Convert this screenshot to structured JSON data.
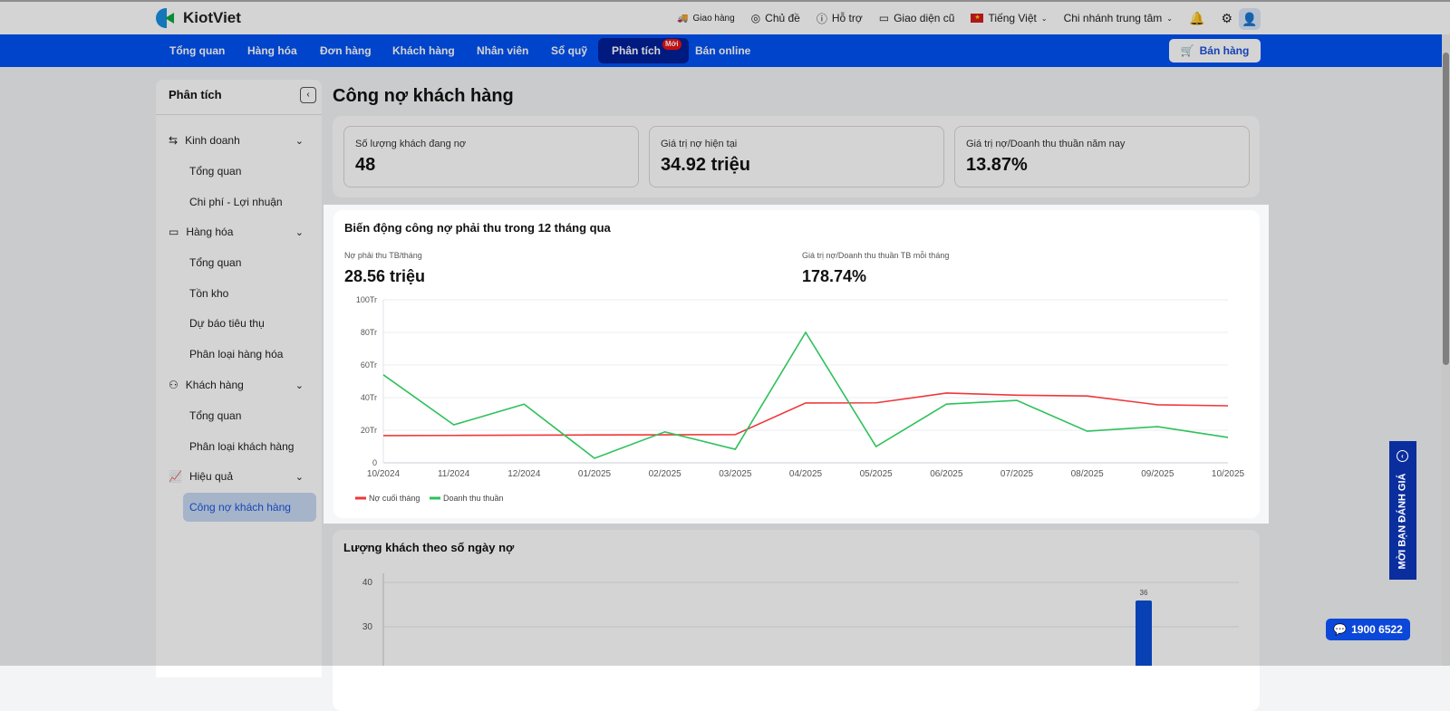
{
  "header": {
    "brand": "KiotViet",
    "links": [
      {
        "label": "Giao hàng",
        "icon": "truck-icon"
      },
      {
        "label": "Chủ đề",
        "icon": "palette-icon"
      },
      {
        "label": "Hỗ trợ",
        "icon": "chat-icon"
      },
      {
        "label": "Giao diện cũ",
        "icon": "monitor-icon"
      }
    ],
    "language": "Tiếng Việt",
    "branch": "Chi nhánh trung tâm"
  },
  "nav": {
    "tabs": [
      "Tổng quan",
      "Hàng hóa",
      "Đơn hàng",
      "Khách hàng",
      "Nhân viên",
      "Sổ quỹ",
      "Phân tích",
      "Bán online"
    ],
    "active": "Phân tích",
    "new_badge": "Mới",
    "sell_button": "Bán hàng"
  },
  "sidebar": {
    "title": "Phân tích",
    "groups": [
      {
        "label": "Kinh doanh",
        "items": [
          "Tổng quan",
          "Chi phí - Lợi nhuận"
        ]
      },
      {
        "label": "Hàng hóa",
        "items": [
          "Tổng quan",
          "Tồn kho",
          "Dự báo tiêu thụ",
          "Phân loại hàng hóa"
        ]
      },
      {
        "label": "Khách hàng",
        "items": [
          "Tổng quan",
          "Phân loại khách hàng"
        ]
      },
      {
        "label": "Hiệu quả",
        "items": [
          "Công nợ khách hàng"
        ]
      }
    ]
  },
  "page": {
    "title": "Công nợ khách hàng"
  },
  "kpis": [
    {
      "label": "Số lượng khách đang nợ",
      "value": "48"
    },
    {
      "label": "Giá trị nợ hiện tại",
      "value": "34.92 triệu"
    },
    {
      "label": "Giá trị nợ/Doanh thu thuần năm nay",
      "value": "13.87%"
    }
  ],
  "debt_card": {
    "title": "Biến động công nợ phải thu trong 12 tháng qua",
    "metric1_label": "Nợ phải thu TB/tháng",
    "metric1_value": "28.56 triệu",
    "metric2_label": "Giá trị nợ/Doanh thu thuần TB mỗi tháng",
    "metric2_value": "178.74%"
  },
  "days_card": {
    "title": "Lượng khách theo số ngày nợ"
  },
  "chart_data": [
    {
      "type": "line",
      "title": "Biến động công nợ phải thu trong 12 tháng qua",
      "categories": [
        "10/2024",
        "11/2024",
        "12/2024",
        "01/2025",
        "02/2025",
        "03/2025",
        "04/2025",
        "05/2025",
        "06/2025",
        "07/2025",
        "08/2025",
        "09/2025",
        "10/2025"
      ],
      "yticks": [
        "0",
        "20Tr",
        "40Tr",
        "60Tr",
        "80Tr",
        "100Tr"
      ],
      "ylim": [
        0,
        100
      ],
      "yunit": "Tr",
      "legend": "bottom-left",
      "grid": true,
      "series": [
        {
          "name": "Nợ cuối tháng",
          "color": "#f0373a",
          "values": [
            16.7,
            16.8,
            17,
            17.1,
            17.2,
            17.3,
            36.7,
            36.8,
            42.8,
            41.5,
            41,
            35.6,
            35
          ]
        },
        {
          "name": "Doanh thu thuần",
          "color": "#2ec15b",
          "values": [
            54,
            23.3,
            36,
            2.8,
            19,
            8.3,
            80,
            10,
            36,
            38.3,
            19.4,
            22.2,
            15.6
          ]
        }
      ]
    },
    {
      "type": "bar",
      "title": "Lượng khách theo số ngày nợ",
      "yticks": [
        "30",
        "40"
      ],
      "values": [
        36
      ],
      "labels": [
        "36"
      ],
      "color": "#0a4fd8"
    }
  ],
  "feedback_tab": "MỜI BẠN ĐÁNH GIÁ",
  "hotline": "1900 6522"
}
